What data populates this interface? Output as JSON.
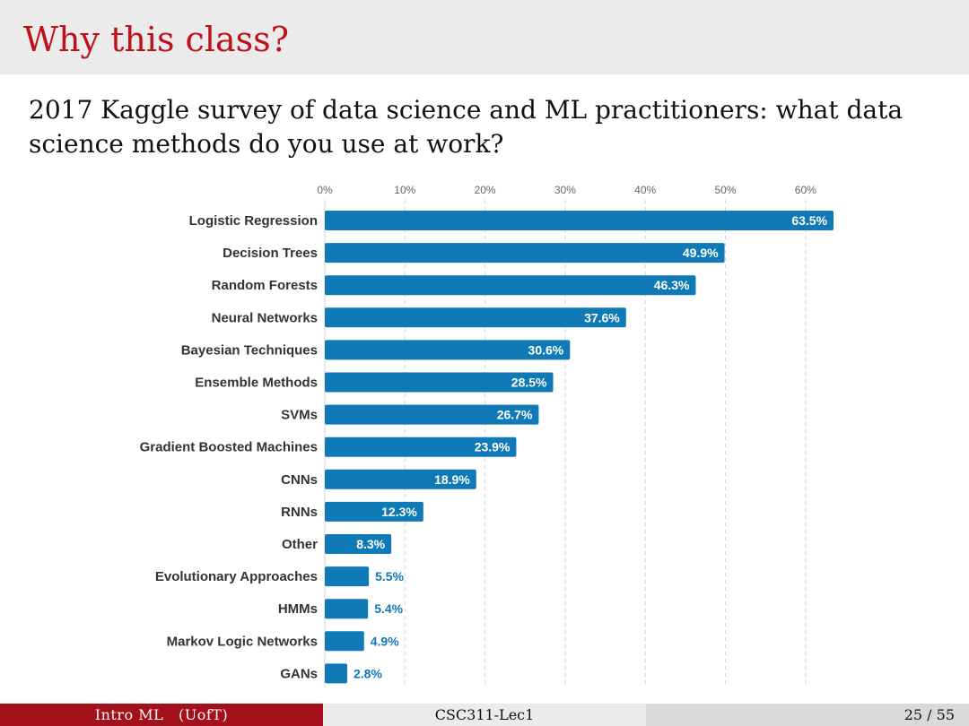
{
  "slide": {
    "title": "Why this class?",
    "intro": "2017 Kaggle survey of data science and ML practitioners: what data science methods do you use at work?"
  },
  "footer": {
    "left_course": "Intro ML",
    "left_school": "(UofT)",
    "center": "CSC311-Lec1",
    "page": "25 / 55"
  },
  "colors": {
    "bar": "#0f7ab5",
    "title": "#c0101a",
    "footer_accent": "#a3101a"
  },
  "chart_data": {
    "type": "bar",
    "orientation": "horizontal",
    "categories": [
      "Logistic Regression",
      "Decision Trees",
      "Random Forests",
      "Neural Networks",
      "Bayesian Techniques",
      "Ensemble Methods",
      "SVMs",
      "Gradient Boosted Machines",
      "CNNs",
      "RNNs",
      "Other",
      "Evolutionary Approaches",
      "HMMs",
      "Markov Logic Networks",
      "GANs"
    ],
    "values": [
      63.5,
      49.9,
      46.3,
      37.6,
      30.6,
      28.5,
      26.7,
      23.9,
      18.9,
      12.3,
      8.3,
      5.5,
      5.4,
      4.9,
      2.8
    ],
    "value_labels": [
      "63.5%",
      "49.9%",
      "46.3%",
      "37.6%",
      "30.6%",
      "28.5%",
      "26.7%",
      "23.9%",
      "18.9%",
      "12.3%",
      "8.3%",
      "5.5%",
      "5.4%",
      "4.9%",
      "2.8%"
    ],
    "xticks": [
      "0%",
      "10%",
      "20%",
      "30%",
      "40%",
      "50%",
      "60%"
    ],
    "xlim": [
      0,
      65
    ],
    "grid": true,
    "axis_position": "top"
  }
}
